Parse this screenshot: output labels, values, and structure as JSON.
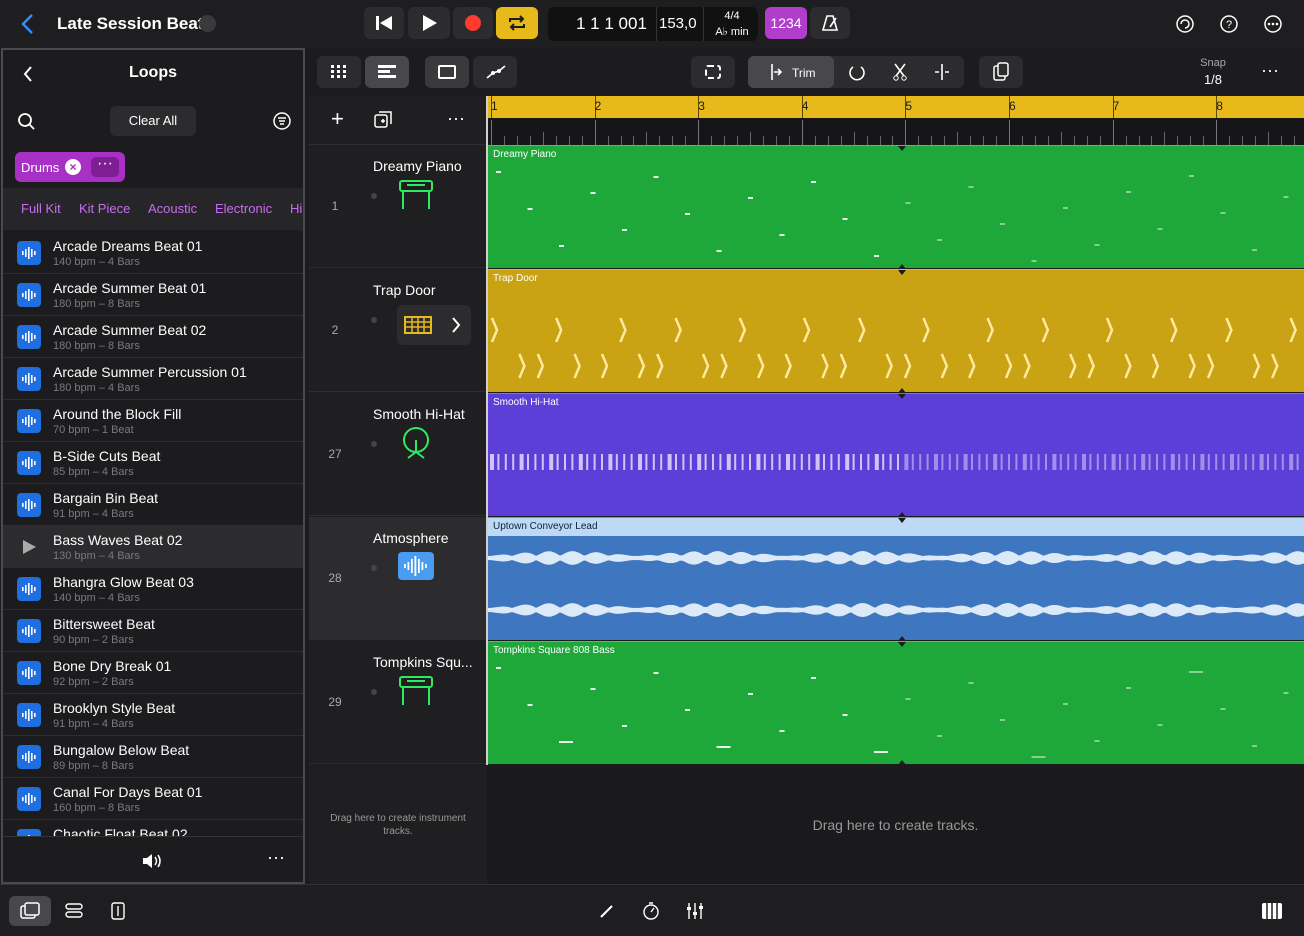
{
  "header": {
    "title": "Late Session Beat",
    "position": "1 1 1 001",
    "tempo": "153,0",
    "time_signature": "4/4",
    "key": "A♭ min",
    "count_in": "1234"
  },
  "loops_panel": {
    "title": "Loops",
    "clear_all": "Clear All",
    "filter": "Drums",
    "categories": [
      "Full Kit",
      "Kit Piece",
      "Acoustic",
      "Electronic",
      "Hip"
    ],
    "items": [
      {
        "name": "Arcade Dreams Beat 01",
        "info": "140 bpm – 4 Bars"
      },
      {
        "name": "Arcade Summer Beat 01",
        "info": "180 bpm – 8 Bars"
      },
      {
        "name": "Arcade Summer Beat 02",
        "info": "180 bpm – 8 Bars"
      },
      {
        "name": "Arcade Summer Percussion 01",
        "info": "180 bpm – 4 Bars"
      },
      {
        "name": "Around the Block Fill",
        "info": "70 bpm – 1 Beat"
      },
      {
        "name": "B-Side Cuts Beat",
        "info": "85 bpm – 4 Bars"
      },
      {
        "name": "Bargain Bin Beat",
        "info": "91 bpm – 4 Bars"
      },
      {
        "name": "Bass Waves Beat 02",
        "info": "130 bpm – 4 Bars"
      },
      {
        "name": "Bhangra Glow Beat 03",
        "info": "140 bpm – 4 Bars"
      },
      {
        "name": "Bittersweet Beat",
        "info": "90 bpm – 2 Bars"
      },
      {
        "name": "Bone Dry Break 01",
        "info": "92 bpm – 2 Bars"
      },
      {
        "name": "Brooklyn Style Beat",
        "info": "91 bpm – 4 Bars"
      },
      {
        "name": "Bungalow Below Beat",
        "info": "89 bpm – 8 Bars"
      },
      {
        "name": "Canal For Days Beat 01",
        "info": "160 bpm – 8 Bars"
      },
      {
        "name": "Chaotic Float Beat 02"
      }
    ]
  },
  "toolbar": {
    "trim": "Trim",
    "snap_label": "Snap",
    "snap_value": "1/8"
  },
  "ruler": {
    "bars": [
      "1",
      "2",
      "3",
      "4",
      "5",
      "6",
      "7",
      "8"
    ]
  },
  "tracks": [
    {
      "name": "Dreamy Piano",
      "number": "1",
      "region": "Dreamy Piano"
    },
    {
      "name": "Trap Door",
      "number": "2",
      "region": "Trap Door"
    },
    {
      "name": "Smooth Hi-Hat",
      "number": "27",
      "region": "Smooth Hi-Hat"
    },
    {
      "name": "Atmosphere",
      "number": "28",
      "region": "Uptown Conveyor Lead"
    },
    {
      "name": "Tompkins Squ...",
      "number": "29",
      "region": "Tompkins Square 808 Bass"
    }
  ],
  "drop_zones": {
    "instrument": "Drag here to create instrument tracks.",
    "tracks": "Drag here to create tracks."
  }
}
